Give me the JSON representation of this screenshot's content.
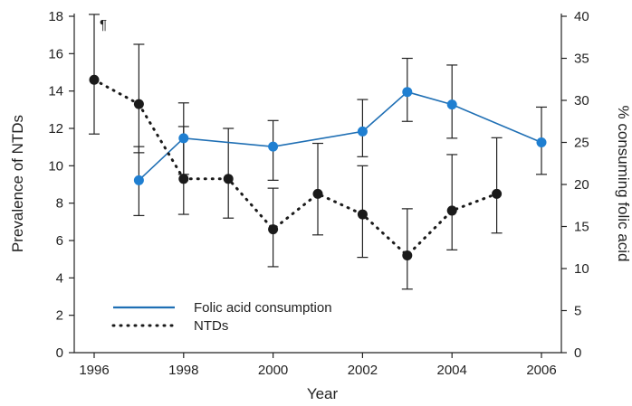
{
  "colors": {
    "folic": "#1f6fb4",
    "folic_marker": "#1f7fd1",
    "ntd": "#1a1a1a",
    "axis": "#222222"
  },
  "chart_data": {
    "type": "line",
    "title": "",
    "xlabel": "Year",
    "ylabel_left": "Prevalence of NTDs",
    "ylabel_right": "% consuming folic acid",
    "xlim": [
      1996,
      2006
    ],
    "ylim_left": [
      0,
      18
    ],
    "ylim_right": [
      0,
      40
    ],
    "x_ticks": [
      1996,
      1998,
      2000,
      2002,
      2004,
      2006
    ],
    "y_ticks_left": [
      0,
      2,
      4,
      6,
      8,
      10,
      12,
      14,
      16,
      18
    ],
    "y_ticks_right": [
      0,
      5,
      10,
      15,
      20,
      25,
      30,
      35,
      40
    ],
    "grid": false,
    "legend_position": "bottom-left",
    "annotation": "¶",
    "series": [
      {
        "name": "Folic acid consumption",
        "axis": "right",
        "style": "solid",
        "x": [
          1997,
          1998,
          2000,
          2002,
          2003,
          2004,
          2006
        ],
        "y": [
          20.5,
          25.5,
          24.5,
          26.3,
          31.0,
          29.5,
          25.0
        ],
        "err_low": [
          16.3,
          21.2,
          20.5,
          23.3,
          27.5,
          25.5,
          21.2
        ],
        "err_high": [
          24.5,
          29.7,
          27.6,
          30.1,
          35.0,
          34.2,
          29.2
        ]
      },
      {
        "name": "NTDs",
        "axis": "left",
        "style": "dotted",
        "x": [
          1996,
          1997,
          1998,
          1999,
          2000,
          2001,
          2002,
          2003,
          2004,
          2005
        ],
        "y": [
          14.6,
          13.3,
          9.3,
          9.3,
          6.6,
          8.5,
          7.4,
          5.2,
          7.6,
          8.5
        ],
        "err_low": [
          11.7,
          10.7,
          7.4,
          7.2,
          4.6,
          6.3,
          5.1,
          3.4,
          5.5,
          6.4
        ],
        "err_high": [
          18.1,
          16.5,
          12.1,
          12.0,
          8.8,
          11.2,
          10.0,
          7.7,
          10.6,
          11.5
        ]
      }
    ]
  }
}
